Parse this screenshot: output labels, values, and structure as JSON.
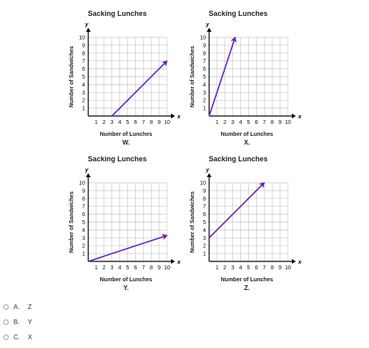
{
  "chart_data": [
    {
      "type": "line",
      "title": "Sacking Lunches",
      "xlabel": "Number of Lunches",
      "ylabel": "Number of Sandwiches",
      "x_axis_name": "x",
      "y_axis_name": "y",
      "caption": "W.",
      "xlim": [
        0,
        10
      ],
      "ylim": [
        0,
        10
      ],
      "x_ticks": [
        "1",
        "2",
        "3",
        "4",
        "5",
        "6",
        "7",
        "8",
        "9",
        "10"
      ],
      "y_ticks": [
        "1",
        "2",
        "3",
        "4",
        "5",
        "6",
        "7",
        "8",
        "9",
        "10"
      ],
      "grid": true,
      "line": {
        "x": [
          3,
          10
        ],
        "y": [
          0,
          7
        ]
      }
    },
    {
      "type": "line",
      "title": "Sacking Lunches",
      "xlabel": "Number of Lunches",
      "ylabel": "Number of Sandwiches",
      "x_axis_name": "x",
      "y_axis_name": "y",
      "caption": "X.",
      "xlim": [
        0,
        10
      ],
      "ylim": [
        0,
        10
      ],
      "x_ticks": [
        "1",
        "2",
        "3",
        "4",
        "5",
        "6",
        "7",
        "8",
        "9",
        "10"
      ],
      "y_ticks": [
        "1",
        "2",
        "3",
        "4",
        "5",
        "6",
        "7",
        "8",
        "9",
        "10"
      ],
      "grid": true,
      "line": {
        "x": [
          0,
          3.3
        ],
        "y": [
          0,
          10
        ]
      }
    },
    {
      "type": "line",
      "title": "Sacking Lunches",
      "xlabel": "Number of Lunches",
      "ylabel": "Number of Sandwiches",
      "x_axis_name": "x",
      "y_axis_name": "y",
      "caption": "Y.",
      "xlim": [
        0,
        10
      ],
      "ylim": [
        0,
        10
      ],
      "x_ticks": [
        "1",
        "2",
        "3",
        "4",
        "5",
        "6",
        "7",
        "8",
        "9",
        "10"
      ],
      "y_ticks": [
        "1",
        "2",
        "3",
        "4",
        "5",
        "6",
        "7",
        "8",
        "9",
        "10"
      ],
      "grid": true,
      "line": {
        "x": [
          0,
          10
        ],
        "y": [
          0,
          3.3
        ]
      }
    },
    {
      "type": "line",
      "title": "Sacking Lunches",
      "xlabel": "Number of Lunches",
      "ylabel": "Number of Sandwiches",
      "x_axis_name": "x",
      "y_axis_name": "y",
      "caption": "Z.",
      "xlim": [
        0,
        10
      ],
      "ylim": [
        0,
        10
      ],
      "x_ticks": [
        "1",
        "2",
        "3",
        "4",
        "5",
        "6",
        "7",
        "8",
        "9",
        "10"
      ],
      "y_ticks": [
        "1",
        "2",
        "3",
        "4",
        "5",
        "6",
        "7",
        "8",
        "9",
        "10"
      ],
      "grid": true,
      "line": {
        "x": [
          0,
          7
        ],
        "y": [
          3,
          10
        ]
      }
    }
  ],
  "colors": {
    "line": "#6a1fb0",
    "grid": "#c8c8c8",
    "axis": "#000000"
  },
  "options": [
    {
      "letter": "A.",
      "text": "Z"
    },
    {
      "letter": "B.",
      "text": "Y"
    },
    {
      "letter": "C.",
      "text": "X"
    }
  ]
}
